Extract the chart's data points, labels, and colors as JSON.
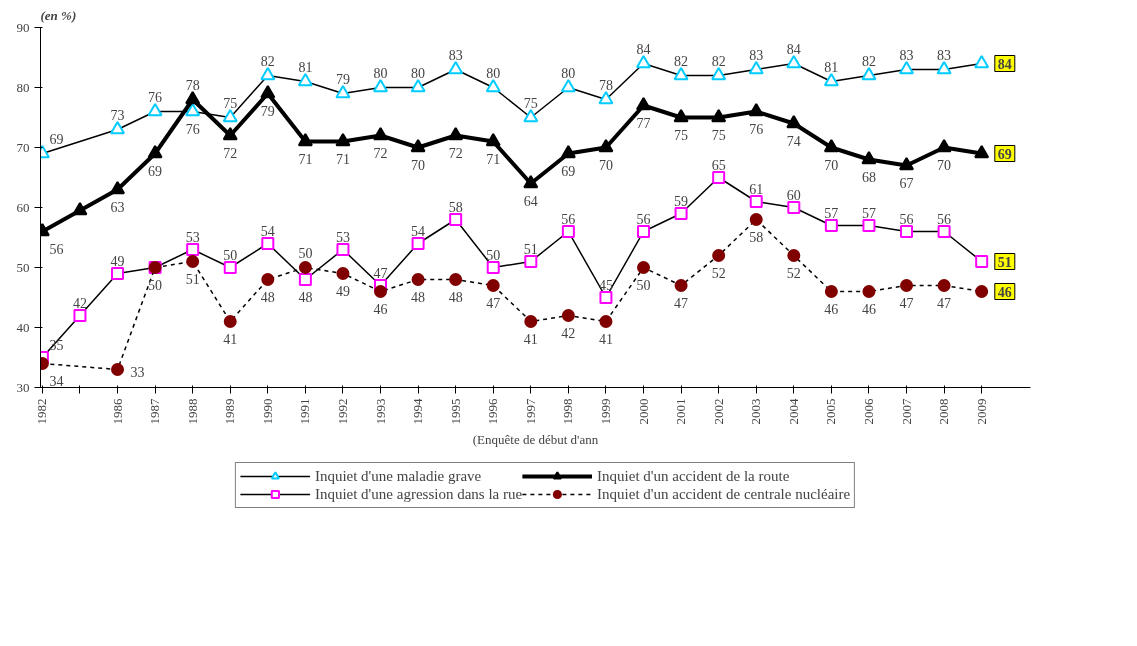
{
  "chart_data": {
    "type": "line",
    "ylabel": "(en %)",
    "xlabel": "(Enquête de début d'ann",
    "categories": [
      "1982",
      null,
      "1986",
      "1987",
      "1988",
      "1989",
      "1990",
      "1991",
      "1992",
      "1993",
      "1994",
      "1995",
      "1996",
      "1997",
      "1998",
      "1999",
      "2000",
      "2001",
      "2002",
      "2003",
      "2004",
      "2005",
      "2006",
      "2007",
      "2008",
      "2009"
    ],
    "ylim": [
      30,
      90
    ],
    "yticks": [
      30,
      40,
      50,
      60,
      70,
      80,
      90
    ],
    "grid": false,
    "legend": "bottom",
    "series": [
      {
        "name": "Inquiet d'une maladie grave",
        "color": "#00ccff",
        "marker": "triangle",
        "line_style": "solid",
        "values": [
          69,
          null,
          73,
          76,
          76,
          75,
          82,
          81,
          79,
          80,
          80,
          83,
          80,
          75,
          80,
          78,
          84,
          82,
          82,
          83,
          84,
          81,
          82,
          83,
          83,
          84
        ],
        "value_labels": [
          "69",
          null,
          "73",
          "76",
          "76",
          "75",
          "82",
          "81",
          "79",
          "80",
          "80",
          "83",
          "80",
          "75",
          "80",
          "78",
          "84",
          "82",
          "82",
          "83",
          "84",
          "81",
          "82",
          "83",
          "83",
          "84"
        ]
      },
      {
        "name": "Inquiet d'un accident de la route",
        "color": "#000000",
        "marker": "triangle",
        "line_style": "solid",
        "values": [
          56,
          59.5,
          63,
          69,
          78,
          72,
          79,
          71,
          71,
          72,
          70,
          72,
          71,
          64,
          69,
          70,
          77,
          75,
          75,
          76,
          74,
          70,
          68,
          67,
          70,
          69
        ],
        "value_labels": [
          "56",
          null,
          "63",
          "69",
          "78",
          "72",
          "79",
          "71",
          "71",
          "72",
          "70",
          "72",
          "71",
          "64",
          "69",
          "70",
          "77",
          "75",
          "75",
          "76",
          "74",
          "70",
          "68",
          "67",
          "70",
          "69"
        ]
      },
      {
        "name": "Inquiet d'une agression dans la rue",
        "color": "#ff00ff",
        "marker": "square",
        "line_style": "solid",
        "values": [
          35,
          42,
          49,
          50,
          53,
          50,
          54,
          48,
          53,
          47,
          54,
          58,
          50,
          51,
          56,
          45,
          56,
          59,
          65,
          61,
          60,
          57,
          57,
          56,
          56,
          51
        ],
        "value_labels": [
          "35",
          "42",
          "49",
          "50",
          "53",
          "50",
          "54",
          "48",
          "53",
          "47",
          "54",
          "58",
          "50",
          "51",
          "56",
          "45",
          "56",
          "59",
          "65",
          "61",
          "60",
          "57",
          "57",
          "56",
          "56",
          "51"
        ]
      },
      {
        "name": "Inquiet d'un accident de centrale nucléaire",
        "color": "#800000",
        "marker": "circle",
        "line_style": "dashed",
        "values": [
          34,
          null,
          33,
          50,
          51,
          41,
          48,
          50,
          49,
          46,
          48,
          48,
          47,
          41,
          42,
          41,
          50,
          47,
          52,
          58,
          52,
          46,
          46,
          47,
          47,
          46
        ],
        "value_labels": [
          "34",
          null,
          "33",
          null,
          "51",
          "41",
          "48",
          "50",
          "49",
          "46",
          "48",
          "48",
          "47",
          "41",
          "42",
          "41",
          "50",
          "47",
          "52",
          "58",
          "52",
          "46",
          "46",
          "47",
          "47",
          "46"
        ]
      }
    ]
  }
}
